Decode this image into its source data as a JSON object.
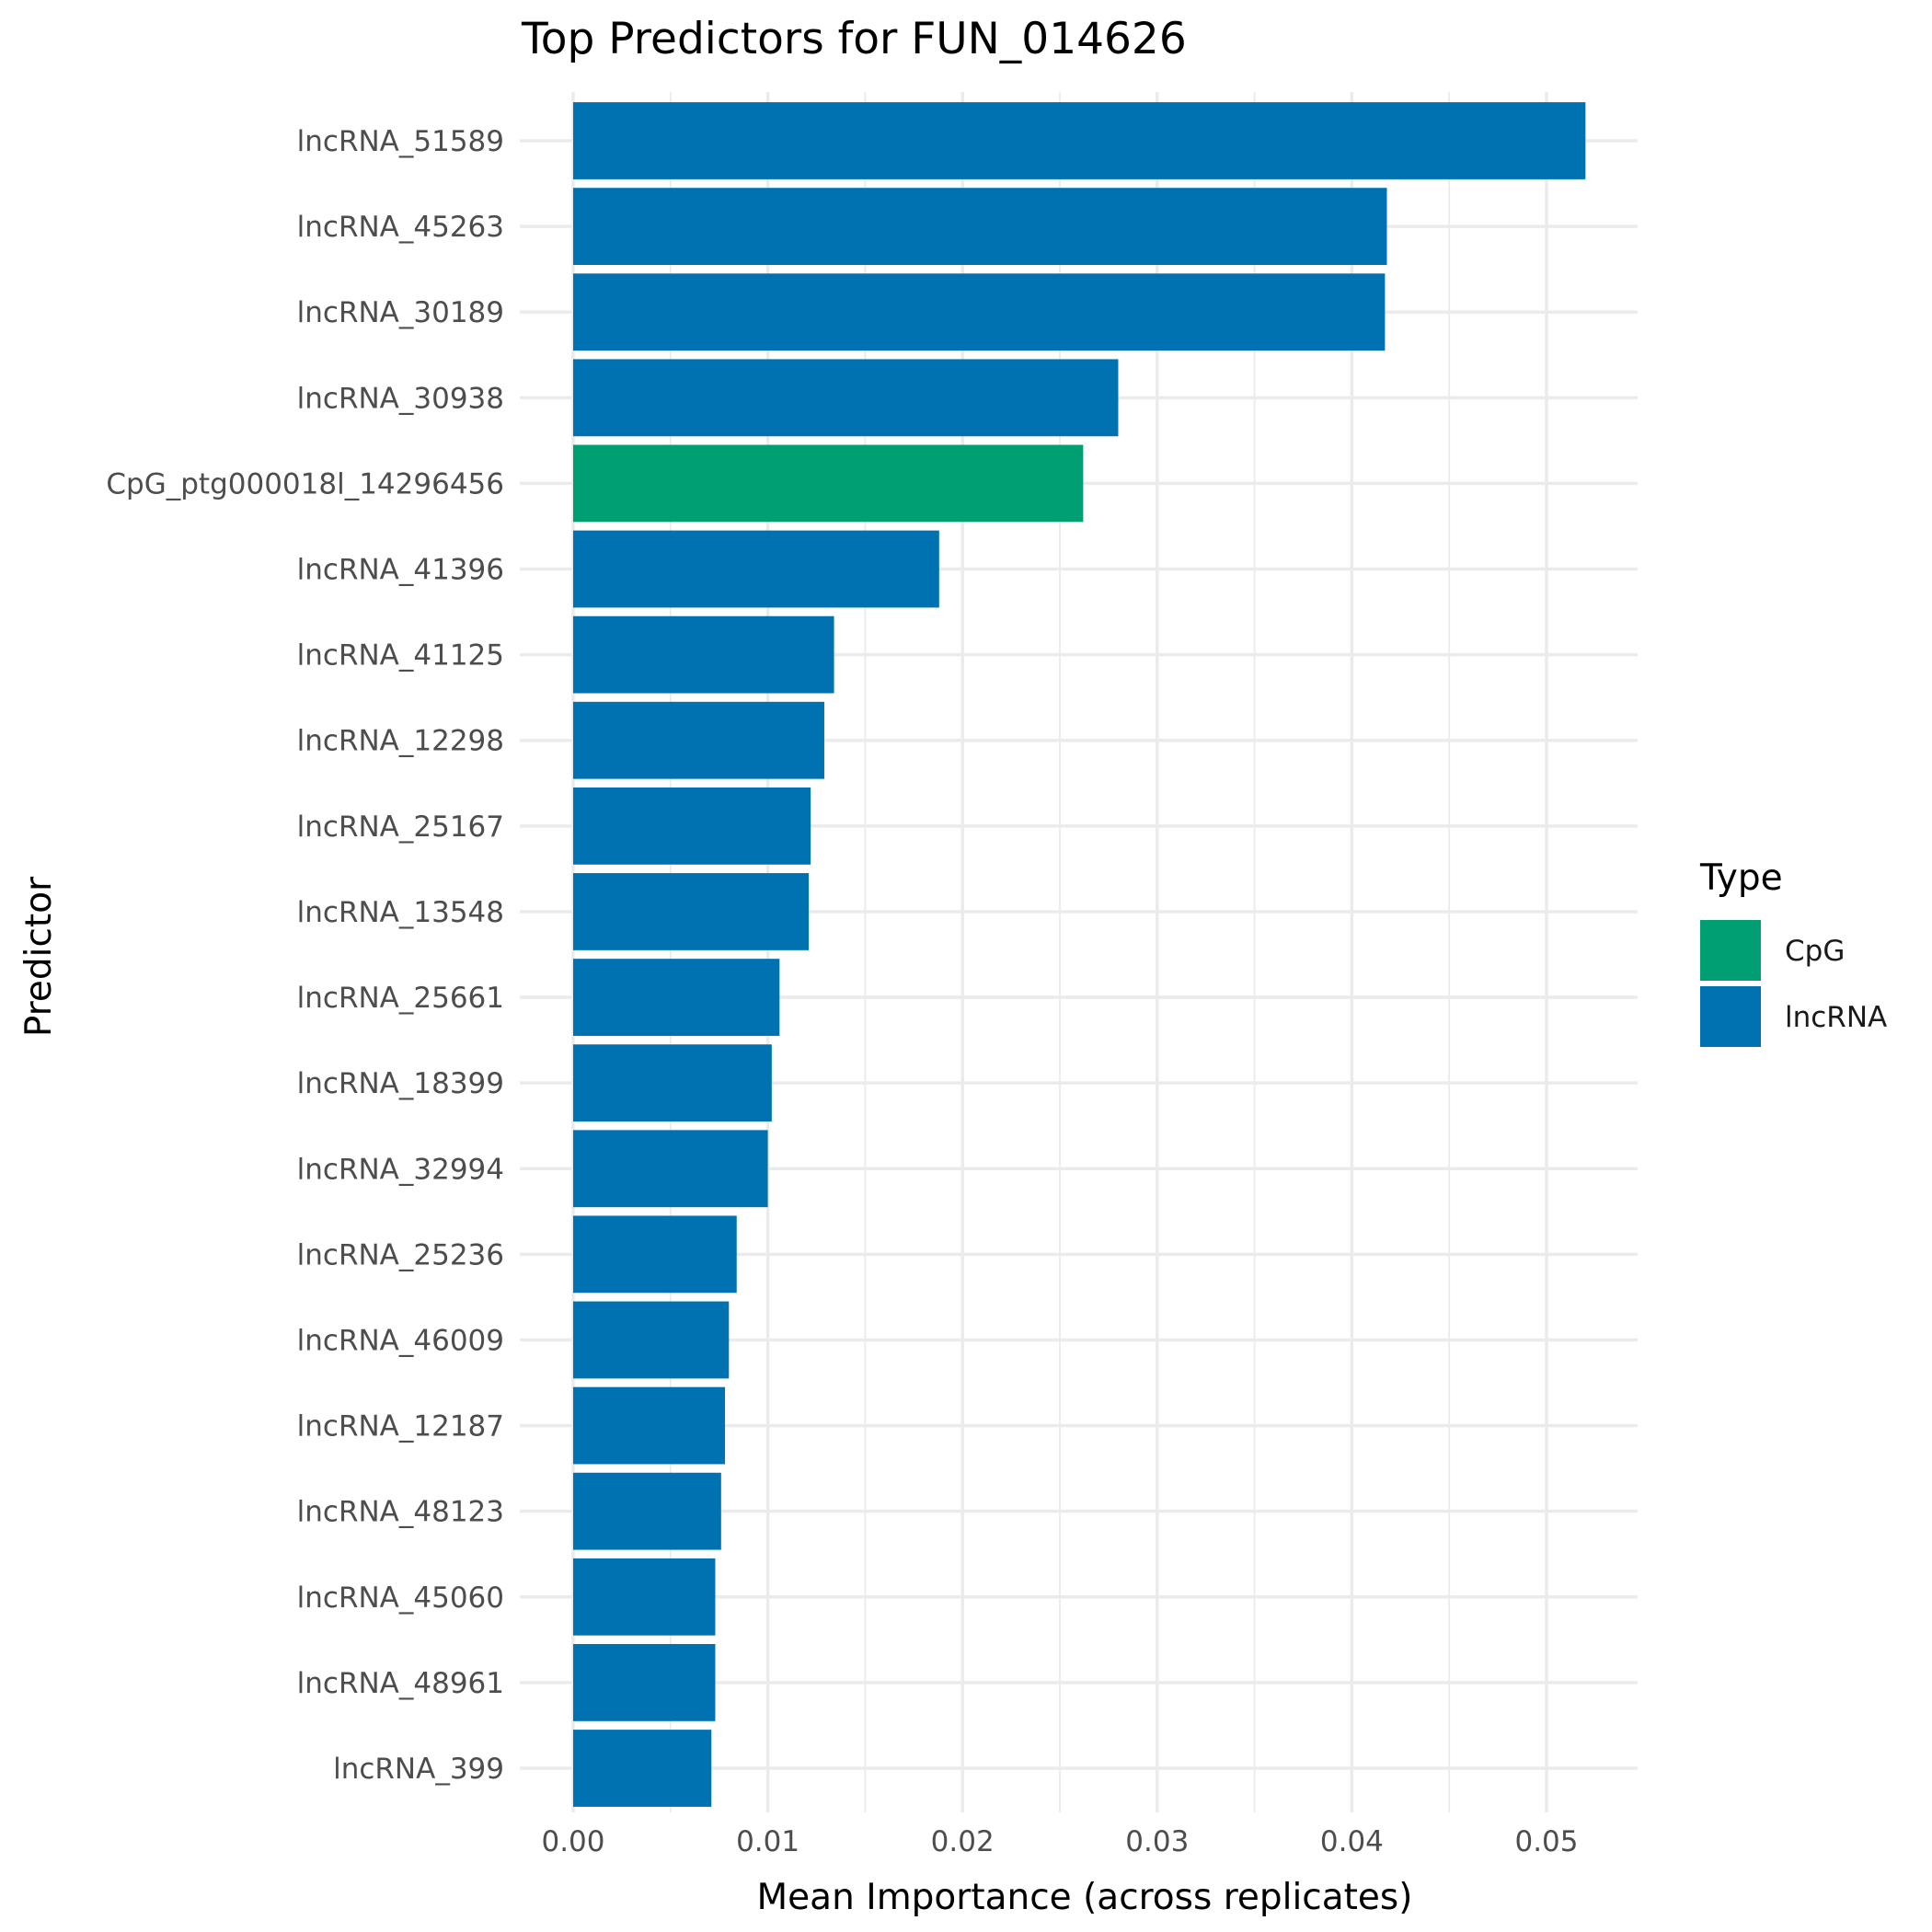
{
  "chart_data": {
    "type": "bar",
    "orientation": "horizontal",
    "title": "Top Predictors for FUN_014626",
    "xlabel": "Mean Importance (across replicates)",
    "ylabel": "Predictor",
    "xlim": [
      0,
      0.0545
    ],
    "xticks": [
      0.0,
      0.01,
      0.02,
      0.03,
      0.04,
      0.05
    ],
    "xtick_labels": [
      "0.00",
      "0.01",
      "0.02",
      "0.03",
      "0.04",
      "0.05"
    ],
    "grid": true,
    "legend": {
      "title": "Type",
      "placement": "right",
      "entries": [
        {
          "label": "CpG",
          "color": "#009E73"
        },
        {
          "label": "lncRNA",
          "color": "#0072B2"
        }
      ]
    },
    "categories": [
      "lncRNA_51589",
      "lncRNA_45263",
      "lncRNA_30189",
      "lncRNA_30938",
      "CpG_ptg000018l_14296456",
      "lncRNA_41396",
      "lncRNA_41125",
      "lncRNA_12298",
      "lncRNA_25167",
      "lncRNA_13548",
      "lncRNA_25661",
      "lncRNA_18399",
      "lncRNA_32994",
      "lncRNA_25236",
      "lncRNA_46009",
      "lncRNA_12187",
      "lncRNA_48123",
      "lncRNA_45060",
      "lncRNA_48961",
      "lncRNA_399"
    ],
    "values": [
      0.052,
      0.0418,
      0.0417,
      0.028,
      0.0262,
      0.0188,
      0.0134,
      0.0129,
      0.0122,
      0.0121,
      0.0106,
      0.0102,
      0.01,
      0.0084,
      0.008,
      0.0078,
      0.0076,
      0.0073,
      0.0073,
      0.0071
    ],
    "types": [
      "lncRNA",
      "lncRNA",
      "lncRNA",
      "lncRNA",
      "CpG",
      "lncRNA",
      "lncRNA",
      "lncRNA",
      "lncRNA",
      "lncRNA",
      "lncRNA",
      "lncRNA",
      "lncRNA",
      "lncRNA",
      "lncRNA",
      "lncRNA",
      "lncRNA",
      "lncRNA",
      "lncRNA",
      "lncRNA"
    ]
  }
}
